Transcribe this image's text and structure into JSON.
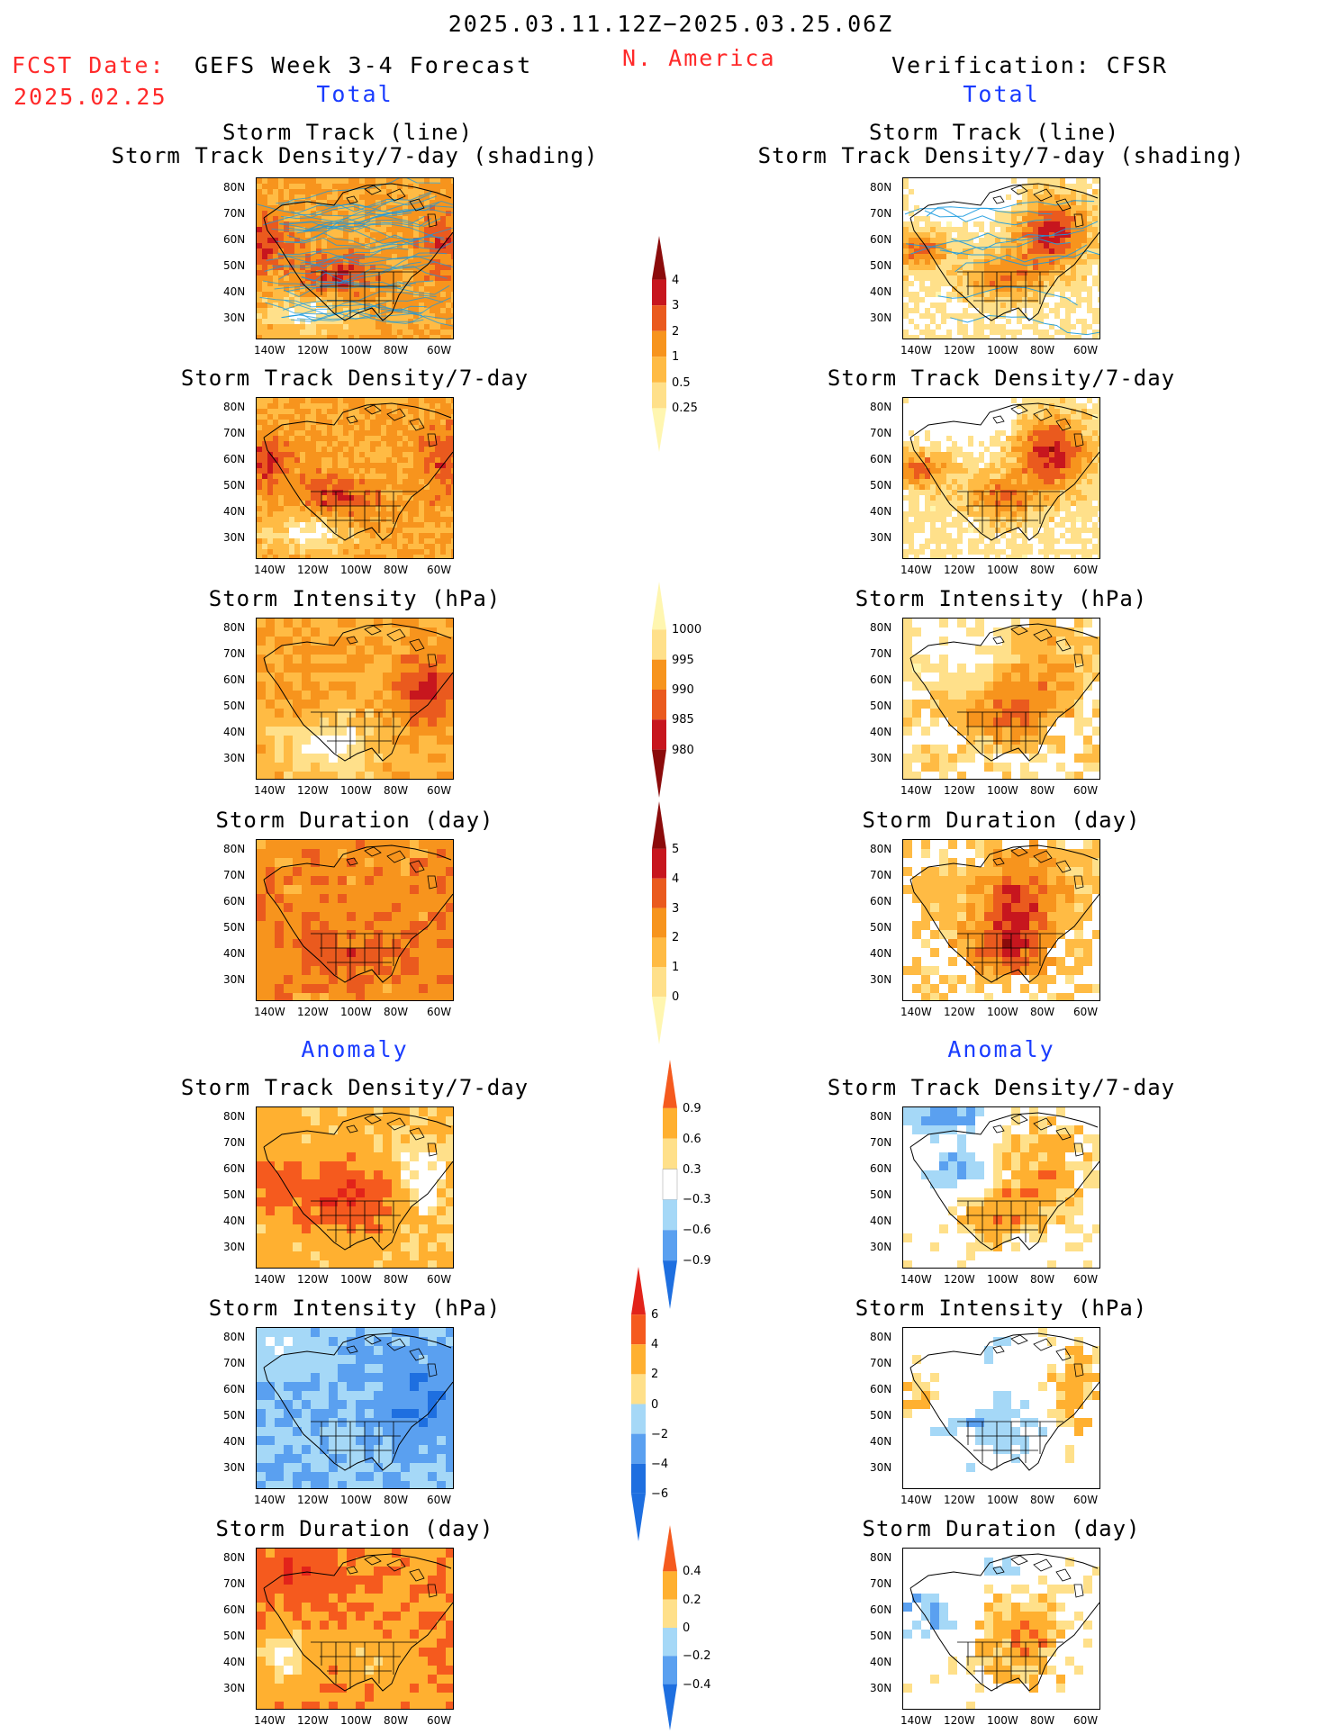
{
  "header": {
    "date_range": "2025.03.11.12Z−2025.03.25.06Z",
    "fcst_label": "FCST Date:",
    "fcst_date": "2025.02.25",
    "model": "GEFS Week 3-4 Forecast",
    "region": "N. America",
    "verification": "Verification: CFSR"
  },
  "sections": {
    "total": "Total",
    "anomaly": "Anomaly"
  },
  "panel_titles": {
    "track_line": "Storm Track (line)",
    "track_shading": "Storm Track Density/7-day (shading)",
    "density": "Storm Track Density/7-day",
    "intensity": "Storm Intensity (hPa)",
    "duration": "Storm Duration (day)"
  },
  "axes": {
    "lat_labels": [
      "80N",
      "70N",
      "60N",
      "50N",
      "40N",
      "30N"
    ],
    "lon_labels": [
      "140W",
      "120W",
      "100W",
      "80W",
      "60W"
    ]
  },
  "colors": {
    "pos_scale": [
      "#fff6b0",
      "#ffe08a",
      "#ffbb44",
      "#f7941d",
      "#ea5a1e",
      "#c7161e",
      "#8b0b0b"
    ],
    "anom_scale": [
      "#1e6fe0",
      "#5aa0f0",
      "#a5d8f7",
      "#ffffff",
      "#ffe08a",
      "#ffb030",
      "#f55a1e",
      "#e2231a"
    ],
    "storm_track_line": "#1a9adf"
  },
  "colorbars": {
    "density_total": [
      "4",
      "3",
      "2",
      "1",
      "0.5",
      "0.25"
    ],
    "intensity_total": [
      "1000",
      "995",
      "990",
      "985",
      "980"
    ],
    "duration_total": [
      "5",
      "4",
      "3",
      "2",
      "1",
      "0"
    ],
    "density_anom": [
      "0.9",
      "0.6",
      "0.3",
      "−0.3",
      "−0.6",
      "−0.9"
    ],
    "intensity_anom": [
      "6",
      "4",
      "2",
      "0",
      "−2",
      "−4",
      "−6"
    ],
    "duration_anom": [
      "0.4",
      "0.2",
      "0",
      "−0.2",
      "−0.4"
    ]
  }
}
